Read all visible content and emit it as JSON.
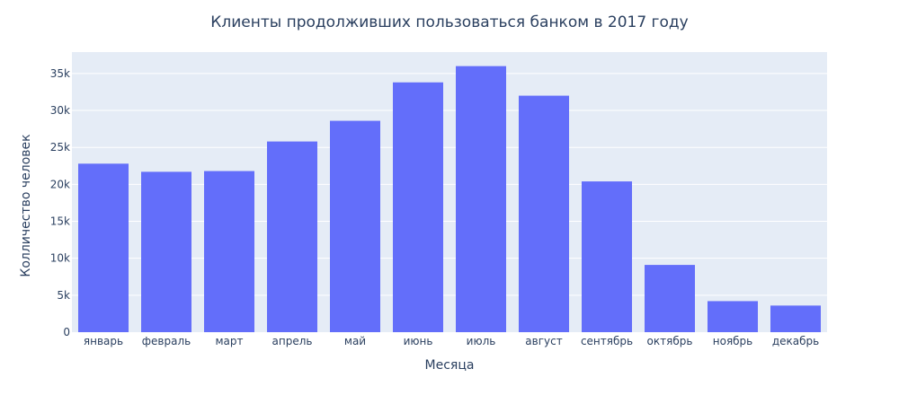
{
  "chart_data": {
    "type": "bar",
    "title": "Клиенты продолживших пользоваться банком в 2017 году",
    "xlabel": "Месяца",
    "ylabel": "Колличество человек",
    "categories": [
      "январь",
      "февраль",
      "март",
      "апрель",
      "май",
      "июнь",
      "июль",
      "август",
      "сентябрь",
      "октябрь",
      "ноябрь",
      "декабрь"
    ],
    "values": [
      22800,
      21700,
      21800,
      25800,
      28600,
      33800,
      36000,
      32000,
      20400,
      9100,
      4200,
      3600
    ],
    "ylim": [
      0,
      37900
    ],
    "yticks": [
      0,
      5000,
      10000,
      15000,
      20000,
      25000,
      30000,
      35000
    ],
    "ytick_labels": [
      "0",
      "5k",
      "10k",
      "15k",
      "20k",
      "25k",
      "30k",
      "35k"
    ],
    "grid": true,
    "colors": {
      "bar": "#636efa",
      "plot_bg": "#e5ecf6",
      "text": "#2a3f5f"
    }
  }
}
